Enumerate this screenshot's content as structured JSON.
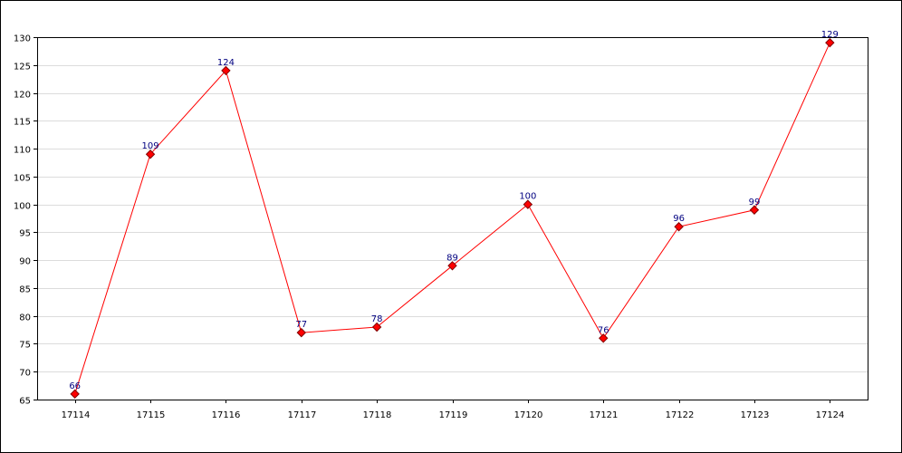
{
  "chart_data": {
    "type": "line",
    "title": "",
    "xlabel": "",
    "ylabel": "",
    "categories": [
      "17114",
      "17115",
      "17116",
      "17117",
      "17118",
      "17119",
      "17120",
      "17121",
      "17122",
      "17123",
      "17124"
    ],
    "series": [
      {
        "values": [
          66,
          109,
          124,
          77,
          78,
          89,
          100,
          76,
          96,
          99,
          129
        ]
      }
    ],
    "ylim": [
      65,
      130
    ],
    "yticks": [
      65,
      70,
      75,
      80,
      85,
      90,
      95,
      100,
      105,
      110,
      115,
      120,
      125,
      130
    ],
    "grid": true,
    "legend": "none",
    "colors": {
      "line": "#ff0000",
      "marker_fill": "#ff0000",
      "marker_stroke": "#800000",
      "data_label": "#000080",
      "grid": "#dcdcdc",
      "axis": "#000000"
    }
  }
}
